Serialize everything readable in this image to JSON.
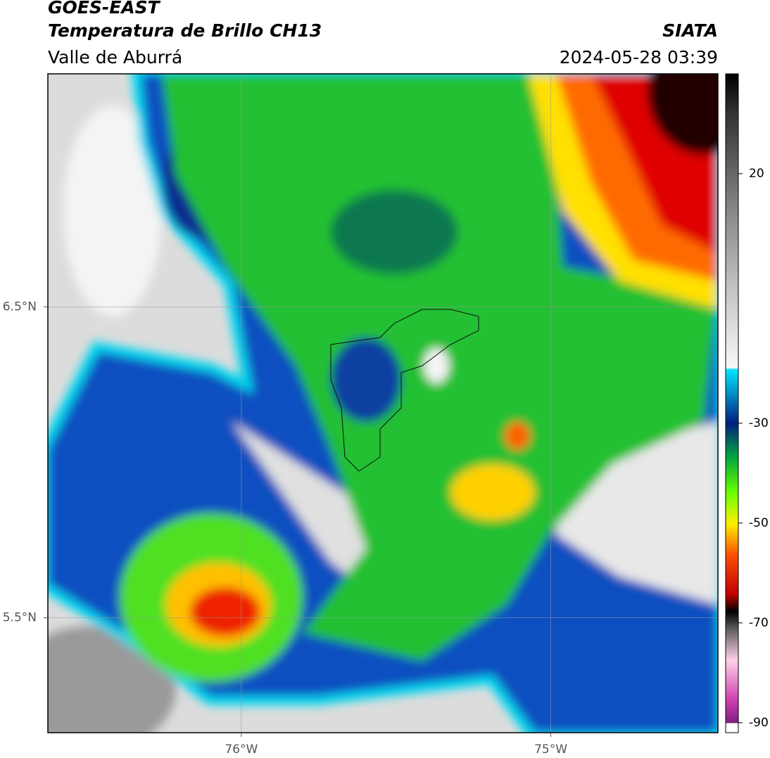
{
  "chart_data": {
    "type": "map",
    "title": "GOES-EAST",
    "subtitle": "Temperatura de Brillo CH13",
    "source": "SIATA",
    "region": "Valle de Aburrá",
    "timestamp": "2024-05-28 03:39",
    "xlim": [
      -76.625,
      -74.46
    ],
    "ylim": [
      5.13,
      7.25
    ],
    "xticks": [
      {
        "value": -76,
        "label": "76°W"
      },
      {
        "value": -75,
        "label": "75°W"
      }
    ],
    "yticks": [
      {
        "value": 6.5,
        "label": "6.5°N"
      },
      {
        "value": 5.5,
        "label": "5.5°N"
      }
    ],
    "grid": true,
    "colorbar": {
      "lim": [
        -92,
        40
      ],
      "ticks": [
        20,
        -30,
        -50,
        -70,
        -90
      ]
    }
  }
}
